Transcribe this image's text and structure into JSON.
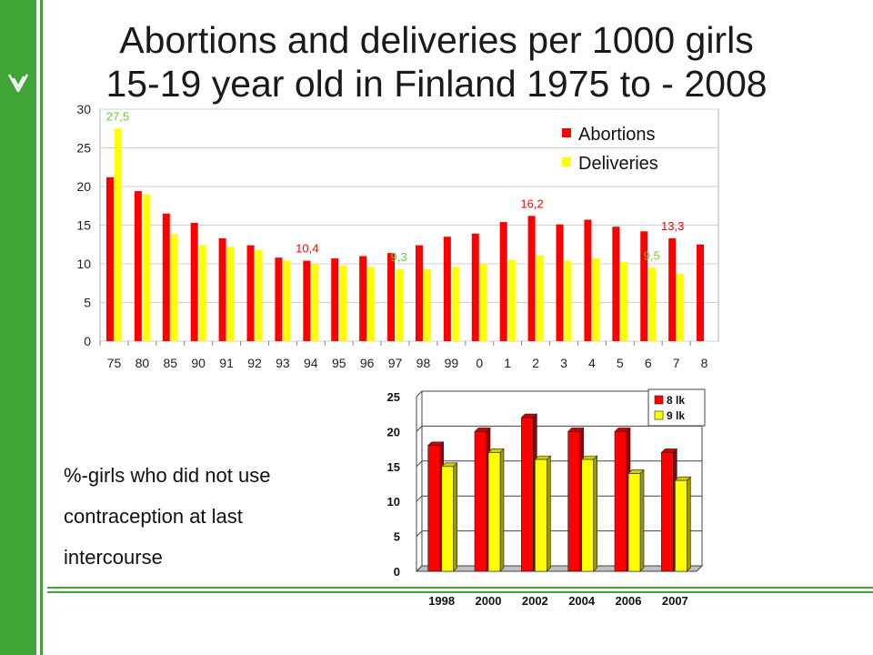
{
  "slide": {
    "title_line1": "Abortions and deliveries per 1000 girls",
    "title_line2": "15-19 year old in Finland 1975 to - 2008",
    "caption_lines": [
      "%-girls who did not use",
      "contraception at last",
      "intercourse"
    ]
  },
  "colors": {
    "accent_green": "#3fa535",
    "abortions_red": "#ff0000",
    "deliveries_yellow": "#ffff00"
  },
  "chart_data": [
    {
      "type": "bar",
      "categories": [
        "75",
        "80",
        "85",
        "90",
        "91",
        "92",
        "93",
        "94",
        "95",
        "96",
        "97",
        "98",
        "99",
        "0",
        "1",
        "2",
        "3",
        "4",
        "5",
        "6",
        "7",
        "8"
      ],
      "ylim": [
        0,
        30
      ],
      "yticks": [
        0,
        5,
        10,
        15,
        20,
        25,
        30
      ],
      "legend_position": "top-right",
      "series": [
        {
          "name": "Abortions",
          "color": "#ff0000",
          "values": [
            21.2,
            19.4,
            16.5,
            15.3,
            13.3,
            12.4,
            10.8,
            10.4,
            10.7,
            11.0,
            11.4,
            12.4,
            13.5,
            13.9,
            15.4,
            16.2,
            15.1,
            15.7,
            14.8,
            14.2,
            13.3,
            12.5
          ]
        },
        {
          "name": "Deliveries",
          "color": "#ffff00",
          "values": [
            27.5,
            19.0,
            13.8,
            12.4,
            12.2,
            11.8,
            10.4,
            10.0,
            9.8,
            9.6,
            9.3,
            9.3,
            9.6,
            10.0,
            10.5,
            11.1,
            10.4,
            10.7,
            10.2,
            9.5,
            8.7,
            null
          ]
        }
      ],
      "annotations": [
        {
          "text": "27,5",
          "series": 1,
          "index": 0,
          "color": "#66cc33"
        },
        {
          "text": "10,4",
          "series": 0,
          "index": 7,
          "color": "#ff0000"
        },
        {
          "text": "9,3",
          "series": 1,
          "index": 10,
          "color": "#66cc33"
        },
        {
          "text": "16,2",
          "series": 0,
          "index": 15,
          "color": "#ff0000"
        },
        {
          "text": "13,3",
          "series": 0,
          "index": 20,
          "color": "#ff0000"
        },
        {
          "text": "9,5",
          "series": 1,
          "index": 19,
          "color": "#66cc33"
        }
      ]
    },
    {
      "type": "bar",
      "style": "3d",
      "categories": [
        "1998",
        "2000",
        "2002",
        "2004",
        "2006",
        "2007"
      ],
      "ylim": [
        0,
        25
      ],
      "yticks": [
        0,
        5,
        10,
        15,
        20,
        25
      ],
      "legend_position": "top-right",
      "series": [
        {
          "name": "8 lk",
          "color": "#ff0000",
          "values": [
            18,
            20,
            22,
            20,
            20,
            17
          ]
        },
        {
          "name": "9 lk",
          "color": "#ffff00",
          "values": [
            15,
            17,
            16,
            16,
            14,
            13
          ]
        }
      ]
    }
  ]
}
